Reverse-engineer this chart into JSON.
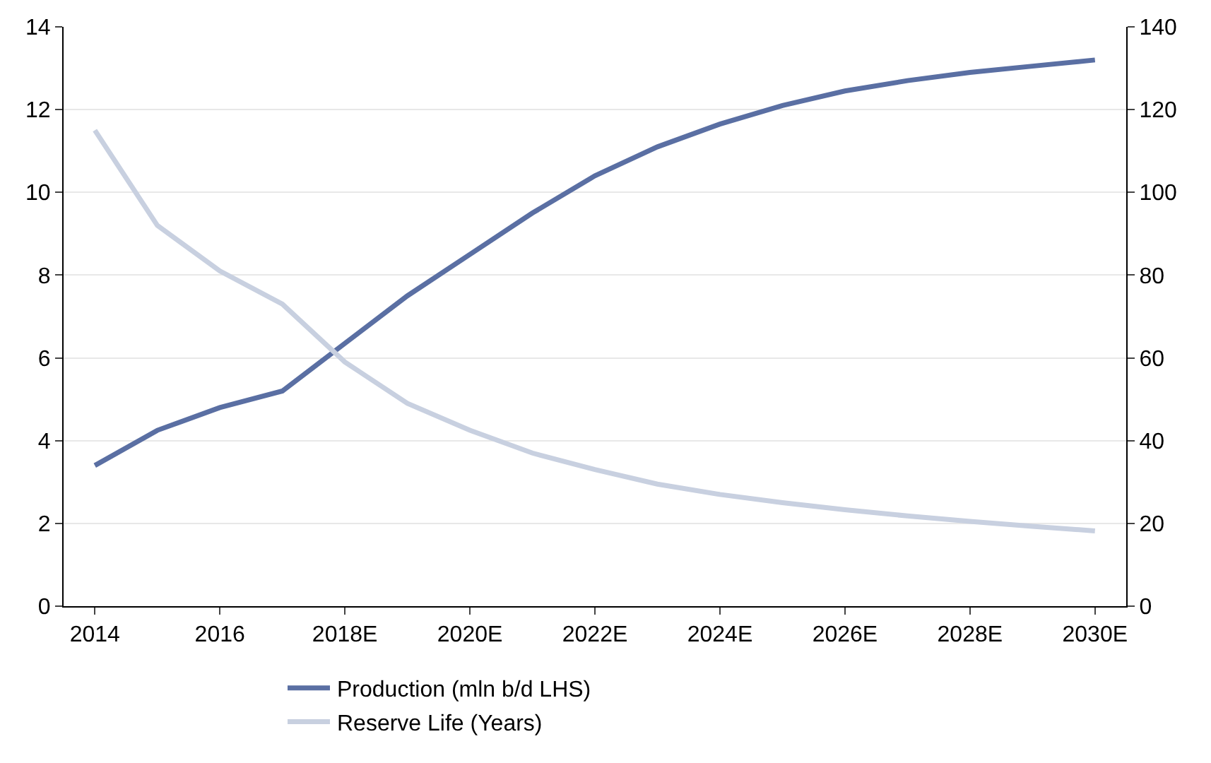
{
  "chart_data": {
    "type": "line",
    "categories": [
      "2014",
      null,
      "2016",
      null,
      "2018E",
      null,
      "2020E",
      null,
      "2022E",
      null,
      "2024E",
      null,
      "2026E",
      null,
      "2028E",
      null,
      "2030E"
    ],
    "series": [
      {
        "name": "Production (mln b/d LHS)",
        "color": "#5a6fa3",
        "values": [
          3.4,
          4.25,
          4.8,
          5.2,
          6.35,
          7.5,
          8.5,
          9.5,
          10.4,
          11.1,
          11.65,
          12.1,
          12.45,
          12.7,
          12.9,
          13.05,
          13.2
        ]
      },
      {
        "name": "Reserve Life (Years)",
        "color": "#c8d0e0",
        "axis": "y2",
        "values": [
          115,
          92,
          81,
          73,
          59,
          49,
          42.5,
          37,
          33,
          29.5,
          27,
          25,
          23.3,
          21.8,
          20.5,
          19.3,
          18.2
        ]
      }
    ],
    "ylim": [
      0,
      14
    ],
    "yticks": [
      0,
      2,
      4,
      6,
      8,
      10,
      12,
      14
    ],
    "y2lim": [
      0,
      140
    ],
    "y2ticks": [
      0,
      20,
      40,
      60,
      80,
      100,
      120,
      140
    ],
    "grid": "y",
    "legend": "bottom",
    "marker": "none",
    "line_style": "solid"
  }
}
